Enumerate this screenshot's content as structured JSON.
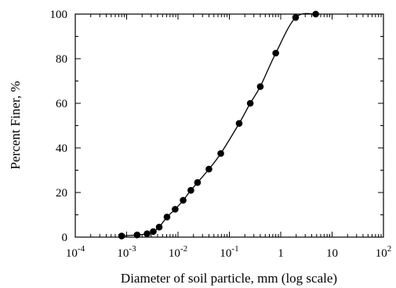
{
  "chart_data": {
    "type": "scatter",
    "xlabel": "Diameter of soil particle, mm (log scale)",
    "ylabel": "Percent Finer, %",
    "x_scale": "log",
    "xlim": [
      0.0001,
      100
    ],
    "ylim": [
      0,
      100
    ],
    "x_ticks": [
      {
        "base": "10",
        "exp": "-4"
      },
      {
        "base": "10",
        "exp": "-3"
      },
      {
        "base": "10",
        "exp": "-2"
      },
      {
        "base": "10",
        "exp": "-1"
      },
      {
        "base": "1",
        "exp": ""
      },
      {
        "base": "10",
        "exp": ""
      },
      {
        "base": "10",
        "exp": "2"
      }
    ],
    "y_ticks": [
      "0",
      "20",
      "40",
      "60",
      "80",
      "100"
    ],
    "grid": false,
    "line": "smooth curve through points",
    "points": [
      {
        "x": 0.0008,
        "y": 0.5
      },
      {
        "x": 0.0016,
        "y": 1.0
      },
      {
        "x": 0.0025,
        "y": 1.5
      },
      {
        "x": 0.0033,
        "y": 2.5
      },
      {
        "x": 0.0043,
        "y": 4.5
      },
      {
        "x": 0.0061,
        "y": 9.0
      },
      {
        "x": 0.0088,
        "y": 12.5
      },
      {
        "x": 0.0126,
        "y": 16.5
      },
      {
        "x": 0.0178,
        "y": 21.0
      },
      {
        "x": 0.024,
        "y": 24.5
      },
      {
        "x": 0.04,
        "y": 30.5
      },
      {
        "x": 0.068,
        "y": 37.5
      },
      {
        "x": 0.155,
        "y": 51.0
      },
      {
        "x": 0.255,
        "y": 60.0
      },
      {
        "x": 0.4,
        "y": 67.5
      },
      {
        "x": 0.8,
        "y": 82.5
      },
      {
        "x": 1.95,
        "y": 98.5
      },
      {
        "x": 4.8,
        "y": 100
      }
    ]
  }
}
